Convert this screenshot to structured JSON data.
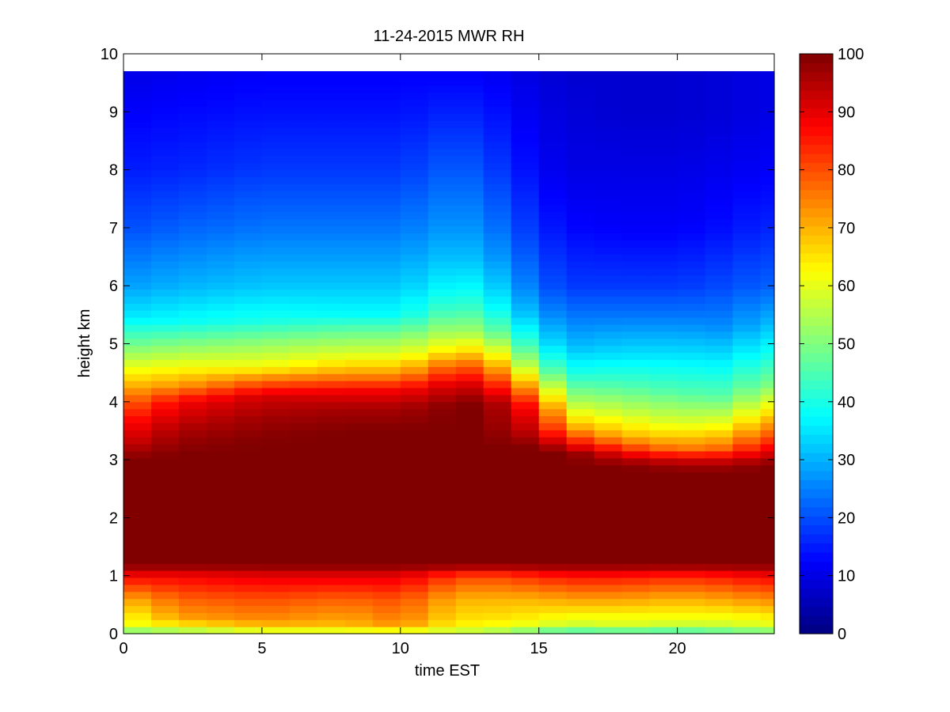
{
  "chart_data": {
    "type": "heatmap",
    "title": "11-24-2015 MWR RH",
    "xlabel": "time EST",
    "ylabel": "height km",
    "xlim": [
      0,
      23.5
    ],
    "ylim": [
      0,
      10
    ],
    "x_ticks": [
      0,
      5,
      10,
      15,
      20
    ],
    "y_ticks": [
      0,
      1,
      2,
      3,
      4,
      5,
      6,
      7,
      8,
      9,
      10
    ],
    "colorbar": {
      "colormap": "jet",
      "clim": [
        0,
        100
      ],
      "ticks": [
        0,
        10,
        20,
        30,
        40,
        50,
        60,
        70,
        80,
        90,
        100
      ]
    },
    "colors": {
      "nan_fill": "#ffffff",
      "colormap_anchors": [
        "#00008f",
        "#0000ff",
        "#00ffff",
        "#ffff00",
        "#ff0000",
        "#800000"
      ]
    },
    "x": [
      0,
      1,
      2,
      3,
      4,
      5,
      6,
      7,
      8,
      9,
      10,
      11,
      12,
      13,
      14,
      15,
      16,
      17,
      18,
      19,
      20,
      21,
      22,
      23
    ],
    "profiles_at_time": [
      {
        "x": 0,
        "heights_km": [
          0,
          0.1,
          0.3,
          0.6,
          1.0,
          1.2,
          3.0,
          3.3,
          3.7,
          4.2,
          4.6,
          5.0,
          5.5,
          6.0,
          7.0,
          8.0,
          9.0,
          9.7
        ],
        "rh": [
          40,
          60,
          62,
          70,
          88,
          100,
          100,
          92,
          85,
          72,
          60,
          48,
          35,
          28,
          20,
          15,
          12,
          10
        ]
      },
      {
        "x": 2,
        "heights_km": [
          0,
          0.1,
          0.3,
          0.6,
          1.0,
          1.2,
          3.1,
          3.5,
          4.0,
          4.3,
          4.6,
          5.0,
          5.4,
          6.0,
          7.0,
          8.0,
          9.0,
          9.7
        ],
        "rh": [
          45,
          62,
          72,
          78,
          88,
          100,
          100,
          96,
          88,
          72,
          62,
          50,
          38,
          30,
          22,
          16,
          13,
          11
        ]
      },
      {
        "x": 5,
        "heights_km": [
          0,
          0.1,
          0.3,
          0.6,
          1.0,
          1.2,
          3.3,
          3.7,
          4.1,
          4.4,
          4.6,
          5.0,
          5.4,
          6.0,
          7.0,
          8.0,
          9.0,
          9.7
        ],
        "rh": [
          50,
          68,
          75,
          80,
          90,
          100,
          100,
          97,
          92,
          75,
          62,
          52,
          40,
          32,
          24,
          18,
          14,
          12
        ]
      },
      {
        "x": 8,
        "heights_km": [
          0,
          0.1,
          0.3,
          0.6,
          1.0,
          1.2,
          3.5,
          3.9,
          4.2,
          4.5,
          4.8,
          5.2,
          5.5,
          6.0,
          7.0,
          8.0,
          9.0,
          9.7
        ],
        "rh": [
          50,
          68,
          72,
          78,
          90,
          100,
          100,
          96,
          88,
          72,
          60,
          48,
          38,
          32,
          24,
          18,
          14,
          12
        ]
      },
      {
        "x": 10,
        "heights_km": [
          0,
          0.1,
          0.3,
          0.6,
          1.0,
          1.2,
          3.5,
          3.9,
          4.2,
          4.5,
          4.8,
          5.2,
          5.5,
          6.0,
          7.0,
          8.0,
          9.0,
          9.7
        ],
        "rh": [
          48,
          72,
          76,
          80,
          90,
          100,
          100,
          96,
          88,
          72,
          60,
          48,
          38,
          32,
          24,
          18,
          14,
          12
        ]
      },
      {
        "x": 12,
        "heights_km": [
          0,
          0.1,
          0.3,
          0.6,
          1.0,
          1.2,
          3.9,
          4.3,
          4.6,
          4.9,
          5.2,
          5.6,
          6.0,
          6.5,
          7.0,
          8.0,
          9.0,
          9.7
        ],
        "rh": [
          52,
          62,
          66,
          70,
          82,
          100,
          100,
          92,
          80,
          65,
          55,
          45,
          38,
          32,
          28,
          22,
          16,
          12
        ]
      },
      {
        "x": 13,
        "heights_km": [
          0,
          0.1,
          0.3,
          0.6,
          1.0,
          1.2,
          4.0,
          4.3,
          4.6,
          4.9,
          5.2,
          5.6,
          6.0,
          6.5,
          7.0,
          8.0,
          9.0,
          9.7
        ],
        "rh": [
          50,
          62,
          66,
          70,
          80,
          100,
          100,
          90,
          78,
          65,
          52,
          42,
          36,
          30,
          26,
          20,
          15,
          12
        ]
      },
      {
        "x": 15,
        "heights_km": [
          0,
          0.1,
          0.3,
          0.6,
          1.0,
          1.2,
          3.2,
          3.5,
          3.9,
          4.2,
          4.6,
          5.0,
          5.5,
          6.0,
          7.0,
          8.0,
          9.0,
          9.7
        ],
        "rh": [
          40,
          58,
          64,
          70,
          84,
          100,
          100,
          92,
          84,
          70,
          50,
          38,
          28,
          22,
          16,
          12,
          10,
          9
        ]
      },
      {
        "x": 16,
        "heights_km": [
          0,
          0.1,
          0.3,
          0.6,
          1.0,
          1.2,
          3.1,
          3.3,
          3.6,
          4.0,
          4.5,
          5.0,
          5.5,
          6.0,
          7.0,
          8.0,
          9.0,
          9.7
        ],
        "rh": [
          35,
          55,
          62,
          72,
          86,
          100,
          100,
          88,
          70,
          55,
          40,
          30,
          24,
          18,
          13,
          10,
          9,
          8
        ]
      },
      {
        "x": 18,
        "heights_km": [
          0,
          0.1,
          0.3,
          0.6,
          1.0,
          1.2,
          2.9,
          3.1,
          3.4,
          3.8,
          4.3,
          4.8,
          5.5,
          6.0,
          7.0,
          8.0,
          9.0,
          9.7
        ],
        "rh": [
          35,
          58,
          62,
          72,
          86,
          100,
          100,
          90,
          70,
          58,
          45,
          35,
          24,
          18,
          12,
          10,
          8,
          8
        ]
      },
      {
        "x": 20,
        "heights_km": [
          0,
          0.1,
          0.3,
          0.6,
          1.0,
          1.2,
          2.8,
          3.0,
          3.2,
          3.6,
          4.2,
          4.8,
          5.5,
          6.0,
          7.0,
          8.0,
          9.0,
          9.7
        ],
        "rh": [
          35,
          55,
          62,
          70,
          84,
          100,
          100,
          92,
          75,
          60,
          45,
          35,
          24,
          18,
          12,
          10,
          8,
          8
        ]
      },
      {
        "x": 22,
        "heights_km": [
          0,
          0.1,
          0.3,
          0.6,
          1.0,
          1.2,
          2.8,
          3.0,
          3.2,
          3.6,
          4.1,
          4.7,
          5.3,
          6.0,
          7.0,
          8.0,
          9.0,
          9.7
        ],
        "rh": [
          40,
          56,
          62,
          72,
          86,
          100,
          100,
          92,
          78,
          62,
          46,
          36,
          26,
          20,
          14,
          11,
          9,
          9
        ]
      },
      {
        "x": 23,
        "heights_km": [
          0,
          0.1,
          0.3,
          0.6,
          1.0,
          1.2,
          2.9,
          3.1,
          3.4,
          3.8,
          4.3,
          4.8,
          5.4,
          6.0,
          7.0,
          8.0,
          9.0,
          9.7
        ],
        "rh": [
          42,
          58,
          64,
          74,
          88,
          100,
          100,
          92,
          80,
          66,
          50,
          40,
          30,
          22,
          16,
          12,
          10,
          10
        ]
      }
    ]
  }
}
